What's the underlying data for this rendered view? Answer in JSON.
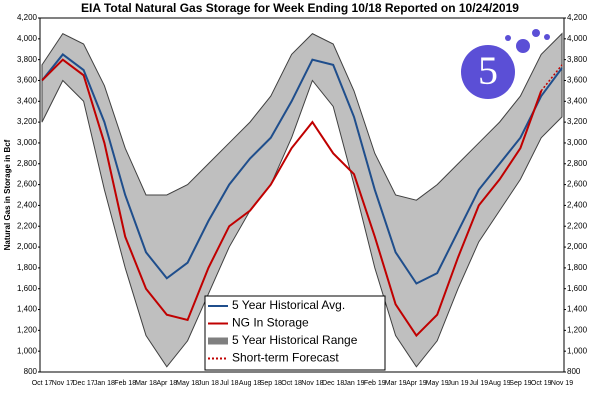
{
  "chart_data": {
    "type": "line",
    "title": "EIA Total Natural Gas Storage for Week Ending 10/18 Reported on 10/24/2019",
    "y_label": "Natural Gas in Storage in Bcf",
    "logo": "5",
    "categories": [
      "Oct 17",
      "Nov 17",
      "Dec 17",
      "Jan 18",
      "Feb 18",
      "Mar 18",
      "Apr 18",
      "May 18",
      "Jun 18",
      "Jul 18",
      "Aug 18",
      "Sep 18",
      "Oct 18",
      "Nov 18",
      "Dec 18",
      "Jan 19",
      "Feb 19",
      "Mar 19",
      "Apr 19",
      "May 19",
      "Jun 19",
      "Jul 19",
      "Aug 19",
      "Sep 19",
      "Oct 19",
      "Nov 19"
    ],
    "ylim": [
      800,
      4200
    ],
    "yticks": [
      800,
      {
        "value": 1000,
        "label": "1,000"
      },
      {
        "value": 1200,
        "label": "1,200"
      },
      {
        "value": 1400,
        "label": "1,400"
      },
      {
        "value": 1600,
        "label": "1,600"
      },
      {
        "value": 1800,
        "label": "1,800"
      },
      {
        "value": 2000,
        "label": "2,000"
      },
      {
        "value": 2200,
        "label": "2,200"
      },
      {
        "value": 2400,
        "label": "2,400"
      },
      {
        "value": 2600,
        "label": "2,600"
      },
      {
        "value": 2800,
        "label": "2,800"
      },
      {
        "value": 3000,
        "label": "3,000"
      },
      {
        "value": 3200,
        "label": "3,200"
      },
      {
        "value": 3400,
        "label": "3,400"
      },
      {
        "value": 3600,
        "label": "3,600"
      },
      {
        "value": 3800,
        "label": "3,800"
      },
      {
        "value": 4000,
        "label": "4,000"
      },
      {
        "value": 4200,
        "label": "4,200"
      }
    ],
    "series": [
      {
        "name": "5 Year Historical Avg.",
        "color": "#1f4e8c",
        "style": "solid",
        "values": [
          3600,
          3850,
          3700,
          3200,
          2500,
          1950,
          1700,
          1850,
          2250,
          2600,
          2850,
          3050,
          3400,
          3800,
          3750,
          3250,
          2550,
          1950,
          1650,
          1750,
          2150,
          2550,
          2800,
          3050,
          3450,
          3720
        ]
      },
      {
        "name": "NG In Storage",
        "color": "#c00000",
        "style": "solid",
        "values": [
          3600,
          3800,
          3650,
          3000,
          2100,
          1600,
          1350,
          1300,
          1800,
          2200,
          2350,
          2600,
          2950,
          3200,
          2900,
          2700,
          2100,
          1450,
          1150,
          1350,
          1900,
          2400,
          2650,
          2950,
          3500,
          null
        ]
      },
      {
        "name": "5 Year Historical Range",
        "color": "#bfbfbf",
        "style": "range",
        "high": [
          3750,
          4050,
          3950,
          3550,
          2950,
          2500,
          2500,
          2600,
          2800,
          3000,
          3200,
          3450,
          3850,
          4050,
          3950,
          3500,
          2900,
          2500,
          2450,
          2600,
          2800,
          3000,
          3200,
          3450,
          3850,
          4050
        ],
        "low": [
          3200,
          3600,
          3400,
          2550,
          1800,
          1150,
          850,
          1100,
          1550,
          2000,
          2350,
          2600,
          3050,
          3600,
          3350,
          2600,
          1800,
          1150,
          850,
          1100,
          1600,
          2050,
          2350,
          2650,
          3050,
          3250
        ]
      },
      {
        "name": "Short-term Forecast",
        "color": "#c00000",
        "style": "dotted",
        "values": [
          null,
          null,
          null,
          null,
          null,
          null,
          null,
          null,
          null,
          null,
          null,
          null,
          null,
          null,
          null,
          null,
          null,
          null,
          null,
          null,
          null,
          null,
          null,
          null,
          3500,
          3750
        ]
      }
    ]
  }
}
